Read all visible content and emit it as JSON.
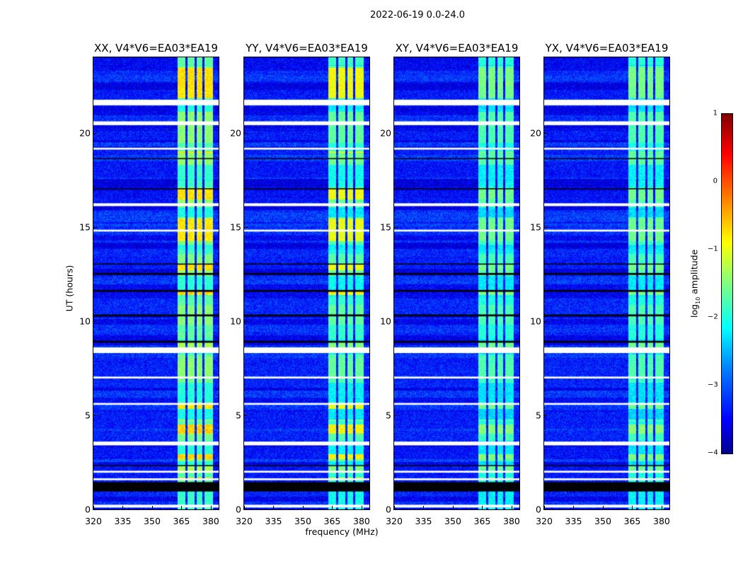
{
  "suptitle": "2022-06-19 0.0-24.0",
  "chart_data": {
    "type": "heatmap",
    "title": "2022-06-19 0.0-24.0",
    "xlabel": "frequency (MHz)",
    "ylabel": "UT (hours)",
    "xlim": [
      320,
      384
    ],
    "ylim": [
      0,
      24
    ],
    "xticks": [
      "320",
      "335",
      "350",
      "365",
      "380"
    ],
    "xtick_values": [
      320,
      335,
      350,
      365,
      380
    ],
    "yticks": [
      "0",
      "5",
      "10",
      "15",
      "20"
    ],
    "ytick_values": [
      0,
      5,
      10,
      15,
      20
    ],
    "panels": [
      {
        "title": "XX, V4*V6=EA03*EA19",
        "band_level": -1.6,
        "bright": true
      },
      {
        "title": "YY, V4*V6=EA03*EA19",
        "band_level": -1.8,
        "bright": true
      },
      {
        "title": "XY, V4*V6=EA03*EA19",
        "band_level": -1.9,
        "bright": false
      },
      {
        "title": "YX, V4*V6=EA03*EA19",
        "band_level": -1.9,
        "bright": false
      }
    ],
    "background_level": -3.3,
    "rfi_band_mhz": [
      363,
      381
    ],
    "subband_gaps_mhz": [
      367.5,
      372,
      376
    ],
    "flagged_white_hours": [
      [
        0.1,
        0.25
      ],
      [
        1.55,
        1.65
      ],
      [
        1.95,
        2.05
      ],
      [
        3.4,
        3.6
      ],
      [
        5.55,
        5.65
      ],
      [
        6.95,
        7.05
      ],
      [
        8.3,
        8.6
      ],
      [
        14.75,
        14.85
      ],
      [
        16.1,
        16.25
      ],
      [
        19.1,
        19.2
      ],
      [
        20.4,
        20.6
      ],
      [
        21.45,
        21.75
      ]
    ],
    "flagged_black_hours": [
      [
        0.95,
        1.45
      ],
      [
        2.3,
        2.35
      ],
      [
        8.85,
        8.95
      ],
      [
        10.25,
        10.35
      ],
      [
        11.55,
        11.65
      ],
      [
        12.45,
        12.55
      ],
      [
        13.0,
        13.05
      ],
      [
        17.0,
        17.05
      ],
      [
        18.6,
        18.65
      ]
    ],
    "colorbar": {
      "label": "log10 amplitude",
      "label_main": "log",
      "label_sub": "10",
      "label_rest": " amplitude",
      "range": [
        -4,
        1
      ],
      "ticks": [
        "1",
        "0",
        "−1",
        "−2",
        "−3",
        "−4"
      ],
      "tick_values": [
        1,
        0,
        -1,
        -2,
        -3,
        -4
      ],
      "colormap": "jet"
    }
  }
}
